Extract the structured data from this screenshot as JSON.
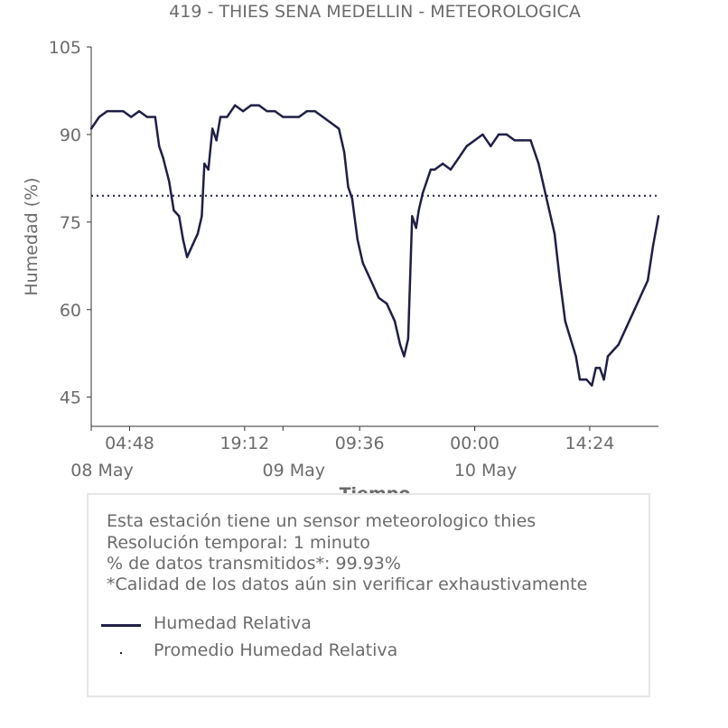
{
  "chart_data": {
    "type": "line",
    "title": "419 - THIES SENA MEDELLIN - METEOROLOGICA",
    "xlabel": "Tiempo",
    "ylabel": "Humedad (%)",
    "ylim": [
      40,
      105
    ],
    "y_ticks": [
      45,
      60,
      75,
      90,
      105
    ],
    "x_range": [
      "2023-05-08 00:00",
      "2023-05-10 23:00"
    ],
    "x_ticks": [
      {
        "time": "2023-05-08 04:48",
        "label": "04:48"
      },
      {
        "time": "2023-05-08 19:12",
        "label": "19:12"
      },
      {
        "time": "2023-05-09 09:36",
        "label": "09:36"
      },
      {
        "time": "2023-05-10 00:00",
        "label": "00:00"
      },
      {
        "time": "2023-05-10 14:24",
        "label": "14:24"
      }
    ],
    "x_day_labels": [
      {
        "time": "2023-05-08 00:00",
        "label": "08 May"
      },
      {
        "time": "2023-05-09 00:00",
        "label": "09 May"
      },
      {
        "time": "2023-05-10 00:00",
        "label": "10 May"
      }
    ],
    "series": [
      {
        "name": "Humedad Relativa",
        "color": "#1f1f46",
        "style": "solid",
        "points": [
          [
            "2023-05-08 00:00",
            91
          ],
          [
            "2023-05-08 01:00",
            93
          ],
          [
            "2023-05-08 02:00",
            94
          ],
          [
            "2023-05-08 03:00",
            94
          ],
          [
            "2023-05-08 04:00",
            94
          ],
          [
            "2023-05-08 05:00",
            93
          ],
          [
            "2023-05-08 06:00",
            94
          ],
          [
            "2023-05-08 07:00",
            93
          ],
          [
            "2023-05-08 08:00",
            93
          ],
          [
            "2023-05-08 08:30",
            88
          ],
          [
            "2023-05-08 09:00",
            86
          ],
          [
            "2023-05-08 09:45",
            82
          ],
          [
            "2023-05-08 10:20",
            77
          ],
          [
            "2023-05-08 11:00",
            76
          ],
          [
            "2023-05-08 11:30",
            72
          ],
          [
            "2023-05-08 12:00",
            69
          ],
          [
            "2023-05-08 12:40",
            71
          ],
          [
            "2023-05-08 13:20",
            73
          ],
          [
            "2023-05-08 13:50",
            76
          ],
          [
            "2023-05-08 14:10",
            85
          ],
          [
            "2023-05-08 14:40",
            84
          ],
          [
            "2023-05-08 15:10",
            91
          ],
          [
            "2023-05-08 15:40",
            89
          ],
          [
            "2023-05-08 16:10",
            93
          ],
          [
            "2023-05-08 17:00",
            93
          ],
          [
            "2023-05-08 18:00",
            95
          ],
          [
            "2023-05-08 19:00",
            94
          ],
          [
            "2023-05-08 20:00",
            95
          ],
          [
            "2023-05-08 21:00",
            95
          ],
          [
            "2023-05-08 22:00",
            94
          ],
          [
            "2023-05-08 23:00",
            94
          ],
          [
            "2023-05-09 00:00",
            93
          ],
          [
            "2023-05-09 01:00",
            93
          ],
          [
            "2023-05-09 02:00",
            93
          ],
          [
            "2023-05-09 03:00",
            94
          ],
          [
            "2023-05-09 04:00",
            94
          ],
          [
            "2023-05-09 05:00",
            93
          ],
          [
            "2023-05-09 06:00",
            92
          ],
          [
            "2023-05-09 07:00",
            91
          ],
          [
            "2023-05-09 07:40",
            87
          ],
          [
            "2023-05-09 08:10",
            81
          ],
          [
            "2023-05-09 08:40",
            79
          ],
          [
            "2023-05-09 09:20",
            72
          ],
          [
            "2023-05-09 10:00",
            68
          ],
          [
            "2023-05-09 10:40",
            66
          ],
          [
            "2023-05-09 11:20",
            64
          ],
          [
            "2023-05-09 12:00",
            62
          ],
          [
            "2023-05-09 13:00",
            61
          ],
          [
            "2023-05-09 14:00",
            58
          ],
          [
            "2023-05-09 14:40",
            54
          ],
          [
            "2023-05-09 15:10",
            52
          ],
          [
            "2023-05-09 15:40",
            55
          ],
          [
            "2023-05-09 16:10",
            76
          ],
          [
            "2023-05-09 16:40",
            74
          ],
          [
            "2023-05-09 17:00",
            77
          ],
          [
            "2023-05-09 17:30",
            80
          ],
          [
            "2023-05-09 18:00",
            82
          ],
          [
            "2023-05-09 18:30",
            84
          ],
          [
            "2023-05-09 19:00",
            84
          ],
          [
            "2023-05-09 20:00",
            85
          ],
          [
            "2023-05-09 21:00",
            84
          ],
          [
            "2023-05-09 22:00",
            86
          ],
          [
            "2023-05-09 23:00",
            88
          ],
          [
            "2023-05-10 00:00",
            89
          ],
          [
            "2023-05-10 01:00",
            90
          ],
          [
            "2023-05-10 02:00",
            88
          ],
          [
            "2023-05-10 03:00",
            90
          ],
          [
            "2023-05-10 04:00",
            90
          ],
          [
            "2023-05-10 05:00",
            89
          ],
          [
            "2023-05-10 06:00",
            89
          ],
          [
            "2023-05-10 07:00",
            89
          ],
          [
            "2023-05-10 08:00",
            85
          ],
          [
            "2023-05-10 08:40",
            81
          ],
          [
            "2023-05-10 09:20",
            77
          ],
          [
            "2023-05-10 10:00",
            73
          ],
          [
            "2023-05-10 10:40",
            65
          ],
          [
            "2023-05-10 11:20",
            58
          ],
          [
            "2023-05-10 12:00",
            55
          ],
          [
            "2023-05-10 12:40",
            52
          ],
          [
            "2023-05-10 13:10",
            48
          ],
          [
            "2023-05-10 14:00",
            48
          ],
          [
            "2023-05-10 14:40",
            47
          ],
          [
            "2023-05-10 15:10",
            50
          ],
          [
            "2023-05-10 15:40",
            50
          ],
          [
            "2023-05-10 16:10",
            48
          ],
          [
            "2023-05-10 16:40",
            52
          ],
          [
            "2023-05-10 17:20",
            53
          ],
          [
            "2023-05-10 18:00",
            54
          ],
          [
            "2023-05-10 19:00",
            57
          ],
          [
            "2023-05-10 20:00",
            60
          ],
          [
            "2023-05-10 21:00",
            63
          ],
          [
            "2023-05-10 21:40",
            65
          ],
          [
            "2023-05-10 22:20",
            71
          ],
          [
            "2023-05-10 23:00",
            76
          ]
        ]
      },
      {
        "name": "Promedio Humedad Relativa",
        "color": "#1f1f46",
        "style": "dotted",
        "constant": 79.5
      }
    ],
    "grid": false
  },
  "info": {
    "line1": "Esta estación tiene un sensor meteorologico thies",
    "line2": "Resolución temporal: 1 minuto",
    "line3": "% de datos transmitidos*: 99.93%",
    "line4": "*Calidad de los datos aún sin verificar exhaustivamente"
  },
  "legend": {
    "item1": "Humedad Relativa",
    "item2": "Promedio Humedad Relativa"
  }
}
